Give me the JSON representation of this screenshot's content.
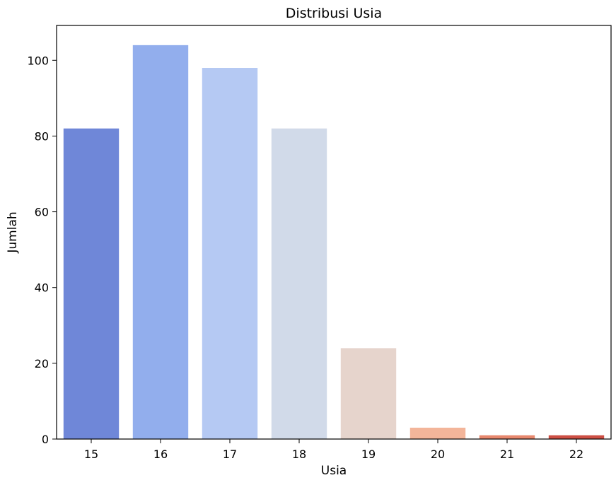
{
  "chart_data": {
    "type": "bar",
    "title": "Distribusi Usia",
    "xlabel": "Usia",
    "ylabel": "Jumlah",
    "categories": [
      "15",
      "16",
      "17",
      "18",
      "19",
      "20",
      "21",
      "22"
    ],
    "values": [
      82,
      104,
      98,
      82,
      24,
      3,
      1,
      1
    ],
    "colors": [
      "#6f87d8",
      "#92aeed",
      "#b5c9f3",
      "#d1dae9",
      "#e6d4cc",
      "#f3b59a",
      "#e7886e",
      "#cd4f44"
    ],
    "ylim": [
      0,
      109.2
    ],
    "yticks": [
      0,
      20,
      40,
      60,
      80,
      100
    ],
    "grid": false,
    "legend": "none"
  }
}
